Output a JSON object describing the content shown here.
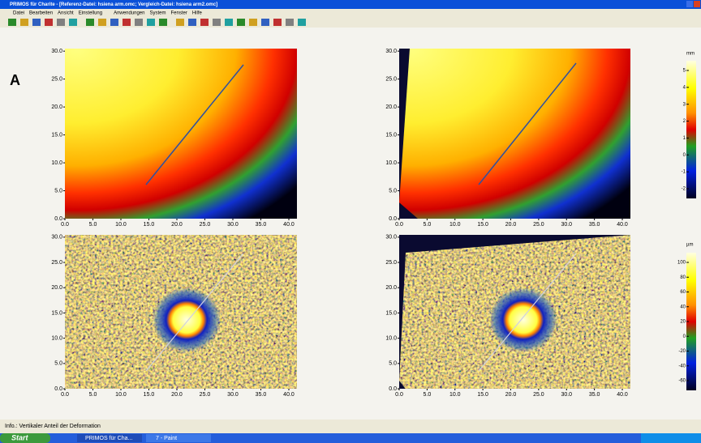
{
  "window": {
    "title": "PRIMOS für Charite - [Referenz-Datei: hsiena arm.omc; Vergleich-Datei: hsiena arm2.omc]"
  },
  "menu": [
    "Datei",
    "Bearbeiten",
    "Ansicht",
    "Einstellung",
    "Anwendungen",
    "System",
    "Fenster",
    "Hilfe"
  ],
  "panel_label": "A",
  "axes": {
    "xticks": [
      "0.0",
      "5.0",
      "10.0",
      "15.0",
      "20.0",
      "25.0",
      "30.0",
      "35.0",
      "40.0"
    ],
    "yticks": [
      "0.0",
      "5.0",
      "10.0",
      "15.0",
      "20.0",
      "25.0",
      "30.0"
    ]
  },
  "colorbars": [
    {
      "unit": "mm",
      "ticks": [
        "5",
        "4",
        "3",
        "2",
        "1",
        "0",
        "-1",
        "-2"
      ]
    },
    {
      "unit": "µm",
      "ticks": [
        "100",
        "80",
        "60",
        "40",
        "20",
        "0",
        "-20",
        "-40",
        "-60"
      ]
    }
  ],
  "status": "Info.:  Vertikaler Anteil der Deformation",
  "taskbar": {
    "start": "Start",
    "items": [
      "PRIMOS für Cha...",
      "7 - Paint"
    ]
  }
}
